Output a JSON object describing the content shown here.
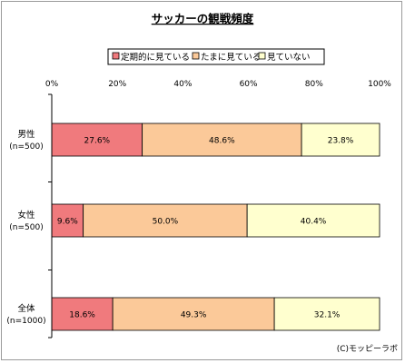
{
  "chart_data": {
    "type": "bar",
    "orientation": "horizontal",
    "stacked": "percent",
    "title": "サッカーの観戦頻度",
    "categories": [
      {
        "label": "男性",
        "sublabel": "(n=500)"
      },
      {
        "label": "女性",
        "sublabel": "(n=500)"
      },
      {
        "label": "全体",
        "sublabel": "(n=1000)"
      }
    ],
    "series": [
      {
        "name": "定期的に見ている",
        "color": "#f07a7d",
        "values": [
          27.6,
          9.6,
          18.6
        ]
      },
      {
        "name": "たまに見ている",
        "color": "#fbc999",
        "values": [
          48.6,
          50.0,
          49.3
        ]
      },
      {
        "name": "見ていない",
        "color": "#ffffcf",
        "values": [
          23.8,
          40.4,
          32.1
        ]
      }
    ],
    "value_labels": [
      [
        "27.6%",
        "48.6%",
        "23.8%"
      ],
      [
        "9.6%",
        "50.0%",
        "40.4%"
      ],
      [
        "18.6%",
        "49.3%",
        "32.1%"
      ]
    ],
    "xlim": [
      0,
      100
    ],
    "x_ticks": [
      "0%",
      "20%",
      "40%",
      "60%",
      "80%",
      "100%"
    ],
    "legend_position": "top",
    "grid": false
  },
  "credit": "(C)モッピーラボ"
}
